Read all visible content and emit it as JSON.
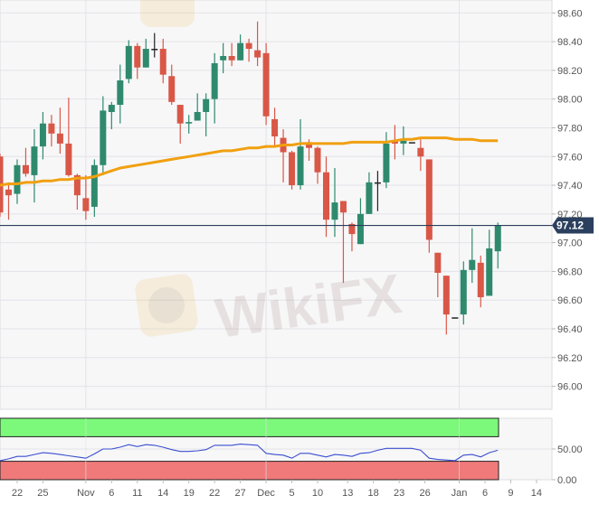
{
  "chart_data": [
    {
      "type": "candlestick",
      "ylim": [
        95.84,
        98.69
      ],
      "xlim": [
        0,
        64.3
      ],
      "grid": true,
      "y_ticks": [
        "98.60",
        "98.40",
        "98.20",
        "98.00",
        "97.80",
        "97.60",
        "97.40",
        "97.20",
        "97.00",
        "96.80",
        "96.60",
        "96.40",
        "96.20",
        "96.00"
      ],
      "x_ticks": [
        {
          "label": "22",
          "pos": 2
        },
        {
          "label": "25",
          "pos": 5
        },
        {
          "label": "Nov",
          "pos": 10
        },
        {
          "label": "6",
          "pos": 13
        },
        {
          "label": "11",
          "pos": 16
        },
        {
          "label": "14",
          "pos": 19
        },
        {
          "label": "19",
          "pos": 22
        },
        {
          "label": "22",
          "pos": 25
        },
        {
          "label": "27",
          "pos": 28
        },
        {
          "label": "Dec",
          "pos": 31
        },
        {
          "label": "5",
          "pos": 34
        },
        {
          "label": "10",
          "pos": 37
        },
        {
          "label": "13",
          "pos": 40.5
        },
        {
          "label": "18",
          "pos": 43.5
        },
        {
          "label": "23",
          "pos": 46.5
        },
        {
          "label": "26",
          "pos": 49.5
        },
        {
          "label": "Jan",
          "pos": 53.5
        },
        {
          "label": "6",
          "pos": 56.5
        },
        {
          "label": "9",
          "pos": 59.5
        },
        {
          "label": "14",
          "pos": 62.5
        }
      ],
      "last_price": {
        "value": 97.12,
        "label": "97.12"
      },
      "colors": {
        "up": "#2f8a6d",
        "down": "#d95747",
        "doji": "#222222",
        "ma": "#f0a010",
        "last_price": "#2b3f5e"
      },
      "candles": [
        [
          97.6,
          97.62,
          97.18,
          97.21
        ],
        [
          97.37,
          97.42,
          97.16,
          97.33
        ],
        [
          97.34,
          97.58,
          97.27,
          97.54
        ],
        [
          97.54,
          97.66,
          97.46,
          97.48
        ],
        [
          97.47,
          97.79,
          97.28,
          97.67
        ],
        [
          97.67,
          97.91,
          97.58,
          97.83
        ],
        [
          97.83,
          97.89,
          97.67,
          97.76
        ],
        [
          97.76,
          97.94,
          97.62,
          97.69
        ],
        [
          97.69,
          98.01,
          97.46,
          97.47
        ],
        [
          97.47,
          97.48,
          97.23,
          97.33
        ],
        [
          97.31,
          97.47,
          97.16,
          97.22
        ],
        [
          97.25,
          97.58,
          97.18,
          97.54
        ],
        [
          97.54,
          98.02,
          97.47,
          97.92
        ],
        [
          97.91,
          97.98,
          97.79,
          97.96
        ],
        [
          97.96,
          98.24,
          97.83,
          98.13
        ],
        [
          98.14,
          98.41,
          98.11,
          98.37
        ],
        [
          98.37,
          98.39,
          98.14,
          98.22
        ],
        [
          98.22,
          98.42,
          98.22,
          98.35
        ],
        [
          98.35,
          98.46,
          98.29,
          98.35
        ],
        [
          98.35,
          98.42,
          98.11,
          98.17
        ],
        [
          98.16,
          98.24,
          97.96,
          97.98
        ],
        [
          97.96,
          97.96,
          97.69,
          97.83
        ],
        [
          97.83,
          97.89,
          97.76,
          97.84
        ],
        [
          97.85,
          98.04,
          97.85,
          97.91
        ],
        [
          97.91,
          98.04,
          97.74,
          98.0
        ],
        [
          98.0,
          98.32,
          97.83,
          98.25
        ],
        [
          98.27,
          98.39,
          98.18,
          98.3
        ],
        [
          98.3,
          98.39,
          98.23,
          98.27
        ],
        [
          98.27,
          98.45,
          98.27,
          98.39
        ],
        [
          98.39,
          98.42,
          98.26,
          98.35
        ],
        [
          98.34,
          98.54,
          98.23,
          98.29
        ],
        [
          98.32,
          98.39,
          97.82,
          97.88
        ],
        [
          97.86,
          97.94,
          97.67,
          97.74
        ],
        [
          97.73,
          97.79,
          97.42,
          97.63
        ],
        [
          97.63,
          97.64,
          97.37,
          97.4
        ],
        [
          97.4,
          97.86,
          97.37,
          97.67
        ],
        [
          97.7,
          97.72,
          97.57,
          97.66
        ],
        [
          97.66,
          97.67,
          97.41,
          97.49
        ],
        [
          97.49,
          97.6,
          97.04,
          97.16
        ],
        [
          97.16,
          97.52,
          97.04,
          97.28
        ],
        [
          97.29,
          97.29,
          96.72,
          97.21
        ],
        [
          97.13,
          97.14,
          96.94,
          97.06
        ],
        [
          96.99,
          97.31,
          96.99,
          97.2
        ],
        [
          97.2,
          97.49,
          97.2,
          97.42
        ],
        [
          97.42,
          97.5,
          97.22,
          97.42
        ],
        [
          97.42,
          97.77,
          97.38,
          97.69
        ],
        [
          97.71,
          97.82,
          97.58,
          97.69
        ],
        [
          97.69,
          97.81,
          97.61,
          97.71
        ],
        [
          97.7,
          97.7,
          97.7,
          97.7
        ],
        [
          97.66,
          97.72,
          97.5,
          97.6
        ],
        [
          97.58,
          97.58,
          96.93,
          97.02
        ],
        [
          96.93,
          96.93,
          96.62,
          96.79
        ],
        [
          96.77,
          96.77,
          96.36,
          96.5
        ],
        [
          96.48,
          96.48,
          96.48,
          96.48
        ],
        [
          96.5,
          96.87,
          96.43,
          96.81
        ],
        [
          96.81,
          97.1,
          96.72,
          96.88
        ],
        [
          96.86,
          96.91,
          96.55,
          96.62
        ],
        [
          96.63,
          97.09,
          96.63,
          96.96
        ],
        [
          96.94,
          97.14,
          96.82,
          97.12
        ]
      ],
      "ma": [
        97.4,
        97.41,
        97.41,
        97.42,
        97.42,
        97.43,
        97.43,
        97.44,
        97.44,
        97.45,
        97.45,
        97.46,
        97.48,
        97.5,
        97.52,
        97.53,
        97.54,
        97.55,
        97.56,
        97.57,
        97.58,
        97.59,
        97.6,
        97.61,
        97.62,
        97.63,
        97.64,
        97.64,
        97.65,
        97.66,
        97.66,
        97.67,
        97.67,
        97.68,
        97.68,
        97.69,
        97.69,
        97.69,
        97.69,
        97.69,
        97.69,
        97.7,
        97.7,
        97.7,
        97.7,
        97.7,
        97.71,
        97.72,
        97.72,
        97.73,
        97.73,
        97.73,
        97.73,
        97.72,
        97.72,
        97.72,
        97.71,
        97.71,
        97.71
      ]
    },
    {
      "type": "line",
      "ylim": [
        0,
        100
      ],
      "y_ticks": [
        "50.00",
        "0.00"
      ],
      "overbought_band": [
        70,
        100
      ],
      "oversold_band": [
        0,
        30
      ],
      "colors": {
        "line": "#3a4fd0",
        "overbought": "#7cf97a",
        "oversold": "#f07a7a"
      },
      "values": [
        31,
        34,
        38,
        38,
        41,
        44,
        43,
        41,
        39,
        37,
        35,
        42,
        50,
        50,
        53,
        57,
        54,
        57,
        56,
        53,
        49,
        46,
        46,
        47,
        49,
        56,
        56,
        56,
        58,
        57,
        56,
        43,
        41,
        40,
        35,
        43,
        43,
        40,
        37,
        41,
        40,
        38,
        43,
        44,
        48,
        51,
        51,
        51,
        51,
        48,
        35,
        33,
        32,
        31,
        40,
        41,
        37,
        44,
        48
      ]
    }
  ],
  "watermark": {
    "text": "WikiFX"
  }
}
